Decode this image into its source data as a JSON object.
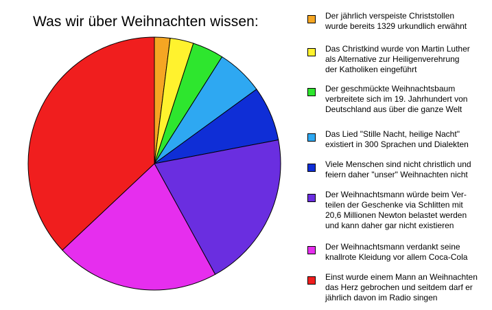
{
  "chart_data": {
    "type": "pie",
    "title": "Was wir über Weihnachten wissen:",
    "start_angle_deg": 0,
    "direction": "clockwise",
    "legend_position": "right",
    "slices": [
      {
        "label": "Der jährlich verspeiste Christstollen\nwurde bereits 1329 urkundlich erwähnt",
        "value": 2,
        "color": "#F5A623"
      },
      {
        "label": "Das Christkind wurde von Martin Luther\nals Alternative zur Heiligenverehrung\nder Katholiken eingeführt",
        "value": 3,
        "color": "#FFF22E"
      },
      {
        "label": "Der geschmückte Weihnachtsbaum\nverbreitete sich im 19. Jahrhundert von\nDeutschland aus über die ganze Welt",
        "value": 4,
        "color": "#2EE62E"
      },
      {
        "label": "Das Lied \"Stille Nacht, heilige Nacht\"\nexistiert in 300 Sprachen und Dialekten",
        "value": 6,
        "color": "#2EA8F2"
      },
      {
        "label": "Viele Menschen sind nicht christlich und\nfeiern daher \"unser\" Weihnachten nicht",
        "value": 7,
        "color": "#0F2ED6"
      },
      {
        "label": "Der Weihnachtsmann würde beim Ver-\nteilen der Geschenke via Schlitten mit\n20,6 Millionen Newton belastet werden\nund kann daher gar nicht existieren",
        "value": 20,
        "color": "#6A2EE0"
      },
      {
        "label": "Der Weihnachtsmann verdankt seine\nknallrote Kleidung vor allem Coca-Cola",
        "value": 21,
        "color": "#E62EEE"
      },
      {
        "label": "Einst wurde einem Mann an Weihnachten\ndas Herz gebrochen und seitdem darf er\njährlich davon im Radio singen",
        "value": 37,
        "color": "#F01E1E"
      }
    ]
  }
}
